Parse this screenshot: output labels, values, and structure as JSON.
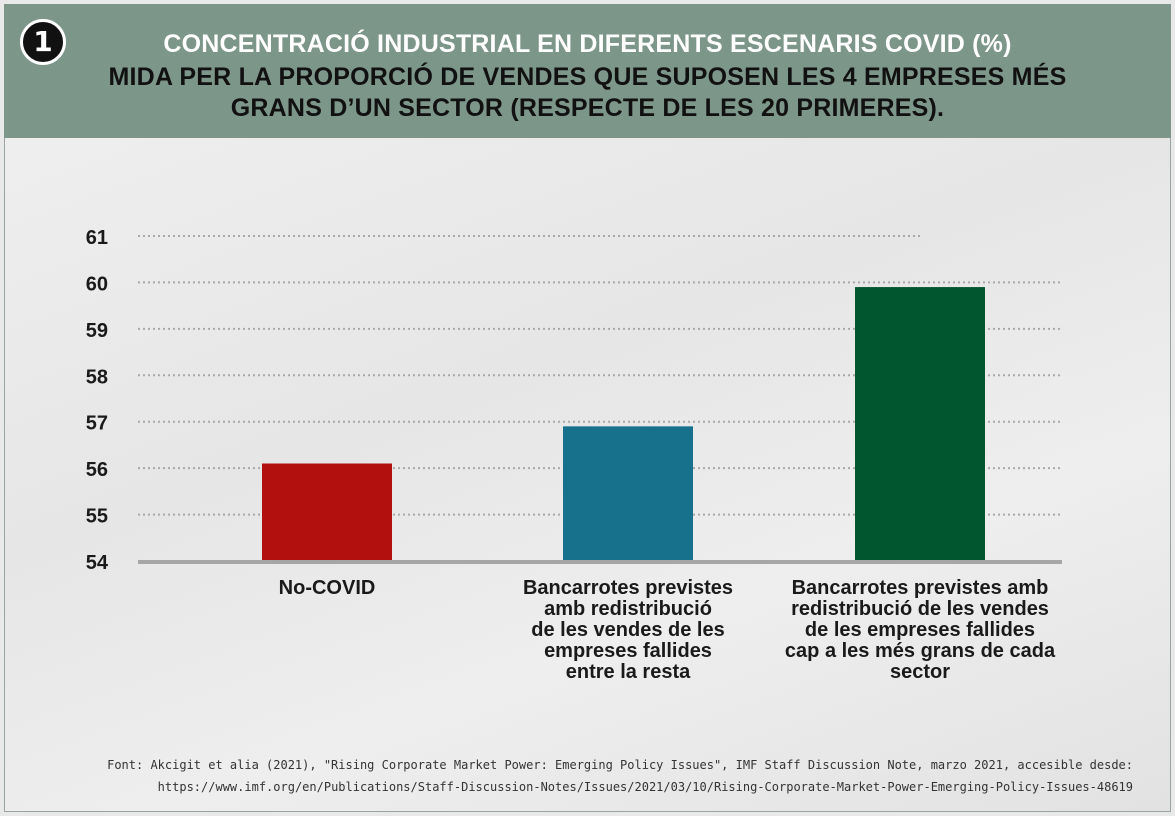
{
  "badge": "1",
  "title_line1": "CONCENTRACIÓ INDUSTRIAL EN DIFERENTS ESCENARIS COVID (%)",
  "title_line2": "MIDA PER LA PROPORCIÓ DE VENDES QUE SUPOSEN LES 4 EMPRESES MÉS",
  "title_line3": "GRANS D’UN SECTOR (RESPECTE DE LES 20 PRIMERES).",
  "source_line1": "Font: Akcigit et alia (2021), \"Rising Corporate Market Power: Emerging Policy Issues\", IMF Staff Discussion Note, marzo 2021, accesible desde:",
  "source_line2": "https://www.imf.org/en/Publications/Staff-Discussion-Notes/Issues/2021/03/10/Rising-Corporate-Market-Power-Emerging-Policy-Issues-48619",
  "chart_data": {
    "type": "bar",
    "categories": [
      "No-COVID",
      "Bancarrotes previstes amb redistribució de les vendes de les empreses fallides entre la resta",
      "Bancarrotes previstes amb redistribució de les vendes de les empreses fallides cap a les més grans de cada sector"
    ],
    "category_lines": [
      [
        "No-COVID"
      ],
      [
        "Bancarrotes previstes",
        "amb redistribució",
        "de les vendes de les",
        "empreses fallides",
        "entre la resta"
      ],
      [
        "Bancarrotes previstes amb",
        "redistribució de les vendes",
        "de les empreses fallides",
        "cap a les més grans de cada",
        "sector"
      ]
    ],
    "values": [
      56.1,
      56.9,
      59.9
    ],
    "colors": [
      "#b1100f",
      "#17708c",
      "#01552f"
    ],
    "ylim": [
      54,
      61
    ],
    "yticks": [
      "54",
      "55",
      "56",
      "57",
      "58",
      "59",
      "60",
      "61"
    ],
    "grid": true,
    "xlabel": "",
    "ylabel": ""
  }
}
